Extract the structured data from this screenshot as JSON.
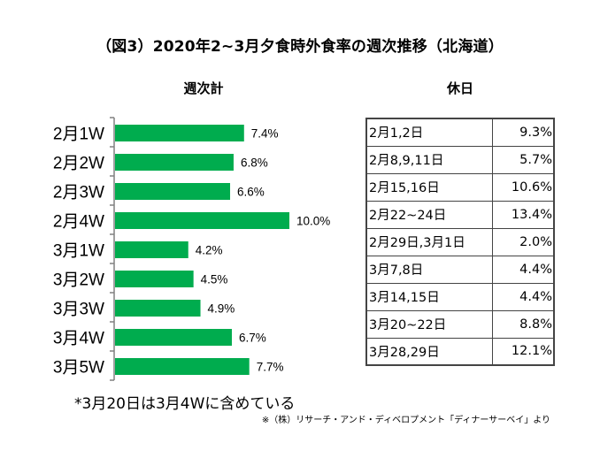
{
  "title": "（図3）2020年2~3月夕食時外食率の週次推移（北海道）",
  "weekly_header": "週次計",
  "holiday_header": "休日",
  "chart_data": {
    "type": "bar",
    "orientation": "horizontal",
    "title": "週次計",
    "categories": [
      "2月1W",
      "2月2W",
      "2月3W",
      "2月4W",
      "3月1W",
      "3月2W",
      "3月3W",
      "3月4W",
      "3月5W"
    ],
    "values": [
      7.4,
      6.8,
      6.6,
      10.0,
      4.2,
      4.5,
      4.9,
      6.7,
      7.7
    ],
    "value_labels": [
      "7.4%",
      "6.8%",
      "6.6%",
      "10.0%",
      "4.2%",
      "4.5%",
      "4.9%",
      "6.7%",
      "7.7%"
    ],
    "unit": "%",
    "xlim": [
      0,
      10.0
    ],
    "grid": false,
    "bar_color": "#00AC4E",
    "axis_color": "#808080"
  },
  "holiday_table": {
    "rows": [
      {
        "period": "2月1,2日",
        "rate": "9.3%"
      },
      {
        "period": "2月8,9,11日",
        "rate": "5.7%"
      },
      {
        "period": "2月15,16日",
        "rate": "10.6%"
      },
      {
        "period": "2月22~24日",
        "rate": "13.4%"
      },
      {
        "period": "2月29日,3月1日",
        "rate": "2.0%"
      },
      {
        "period": "3月7,8日",
        "rate": "4.4%"
      },
      {
        "period": "3月14,15日",
        "rate": "4.4%"
      },
      {
        "period": "3月20~22日",
        "rate": "8.8%"
      },
      {
        "period": "3月28,29日",
        "rate": "12.1%"
      }
    ]
  },
  "note": "*3月20日は3月4Wに含めている",
  "source": "※（株）リサーチ・アンド・ディベロプメント「ディナーサーベイ」より"
}
